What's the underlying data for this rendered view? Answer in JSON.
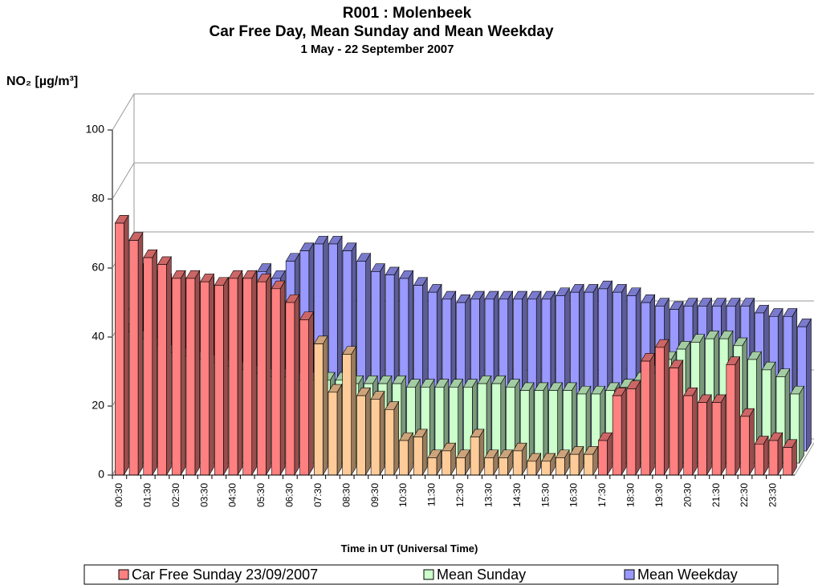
{
  "chart_data": {
    "type": "bar3d",
    "title": "R001 : Molenbeek",
    "subtitle": "Car Free Day, Mean Sunday and Mean Weekday",
    "period": "1 May - 22 September 2007",
    "y_label": "NO₂  [µg/m³]",
    "x_label": "Time in UT (Universal Time)",
    "categories": [
      "00:30",
      null,
      "01:30",
      null,
      "02:30",
      null,
      "03:30",
      null,
      "04:30",
      null,
      "05:30",
      null,
      "06:30",
      null,
      "07:30",
      null,
      "08:30",
      null,
      "09:30",
      null,
      "10:30",
      null,
      "11:30",
      null,
      "12:30",
      null,
      "13:30",
      null,
      "14:30",
      null,
      "15:30",
      null,
      "16:30",
      null,
      "17:30",
      null,
      "18:30",
      null,
      "19:30",
      null,
      "20:30",
      null,
      "21:30",
      null,
      "22:30",
      null,
      "23:30",
      null
    ],
    "ylim": [
      0,
      100
    ],
    "yticks": [
      0,
      20,
      40,
      60,
      80,
      100
    ],
    "grid": true,
    "series": [
      {
        "name": "Car Free Sunday 23/09/2007",
        "color": "#ff8080",
        "values": [
          73,
          68,
          63,
          61,
          57,
          57,
          56,
          55,
          57,
          57,
          56,
          54,
          50,
          45,
          38,
          24,
          35,
          23,
          22,
          19,
          10,
          11,
          5,
          7,
          5,
          11,
          5,
          5,
          7,
          4,
          4,
          5,
          6,
          6,
          10,
          23,
          25,
          33,
          37,
          31,
          23,
          21,
          21,
          32,
          17,
          9,
          10,
          8
        ],
        "colors": [
          "#ff8080",
          "#ff8080",
          "#ff8080",
          "#ff8080",
          "#ff8080",
          "#ff8080",
          "#ff8080",
          "#ff8080",
          "#ff8080",
          "#ff8080",
          "#ff8080",
          "#ff8080",
          "#ff8080",
          "#ff8080",
          "#ffcc99",
          "#ffcc99",
          "#ffcc99",
          "#ffcc99",
          "#ffcc99",
          "#ffcc99",
          "#ffcc99",
          "#ffcc99",
          "#ffcc99",
          "#ffcc99",
          "#ffcc99",
          "#ffcc99",
          "#ffcc99",
          "#ffcc99",
          "#ffcc99",
          "#ffcc99",
          "#ffcc99",
          "#ffcc99",
          "#ffcc99",
          "#ffcc99",
          "#ff8080",
          "#ff8080",
          "#ff8080",
          "#ff8080",
          "#ff8080",
          "#ff8080",
          "#ff8080",
          "#ff8080",
          "#ff8080",
          "#ff8080",
          "#ff8080",
          "#ff8080",
          "#ff8080",
          "#ff8080"
        ]
      },
      {
        "name": "Mean Sunday",
        "color": "#ccffcc",
        "values": [
          38,
          36,
          34,
          32,
          31,
          30,
          29,
          28,
          27,
          26,
          25,
          25,
          24,
          24,
          24,
          24,
          23,
          23,
          23,
          23,
          22,
          22,
          22,
          22,
          22,
          23,
          23,
          22,
          21,
          21,
          21,
          21,
          20,
          20,
          21,
          22,
          24,
          26,
          30,
          33,
          35,
          36,
          36,
          34,
          30,
          27,
          25,
          20
        ]
      },
      {
        "name": "Mean Weekday",
        "color": "#9999ff",
        "values": [
          52,
          50,
          49,
          48,
          48,
          48,
          48,
          49,
          50,
          52,
          50,
          55,
          58,
          60,
          60,
          58,
          55,
          52,
          51,
          50,
          48,
          46,
          44,
          43,
          44,
          44,
          44,
          44,
          44,
          44,
          45,
          46,
          46,
          47,
          46,
          45,
          43,
          42,
          41,
          42,
          42,
          42,
          42,
          42,
          40,
          39,
          39,
          36
        ]
      }
    ]
  }
}
